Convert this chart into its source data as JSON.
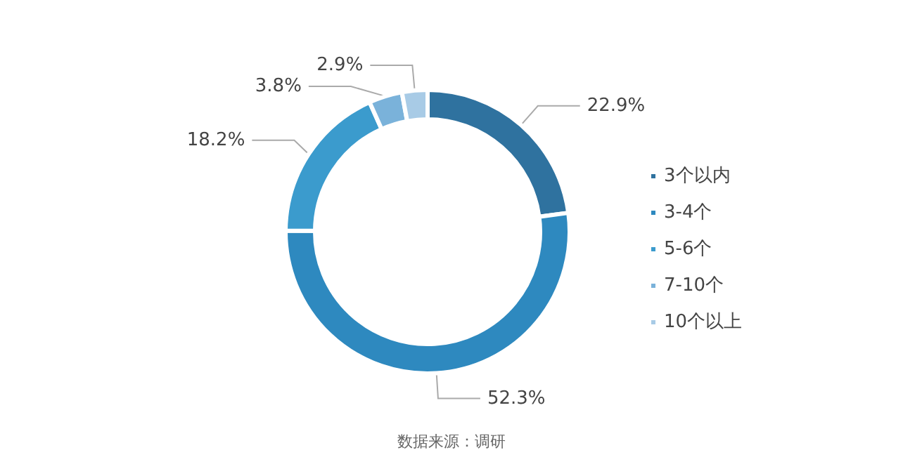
{
  "chart_data": {
    "type": "donut",
    "categories": [
      "3个以内",
      "3-4个",
      "5-6个",
      "7-10个",
      "10个以上"
    ],
    "values": [
      22.9,
      52.3,
      18.2,
      3.8,
      2.9
    ],
    "value_labels": [
      "22.9%",
      "52.3%",
      "18.2%",
      "3.8%",
      "2.9%"
    ],
    "colors": [
      "#2f729f",
      "#2e89bf",
      "#3b9bcd",
      "#7ab2da",
      "#a8cbe6"
    ],
    "legend": "right",
    "annotations": [
      "数据来源：调研"
    ]
  }
}
